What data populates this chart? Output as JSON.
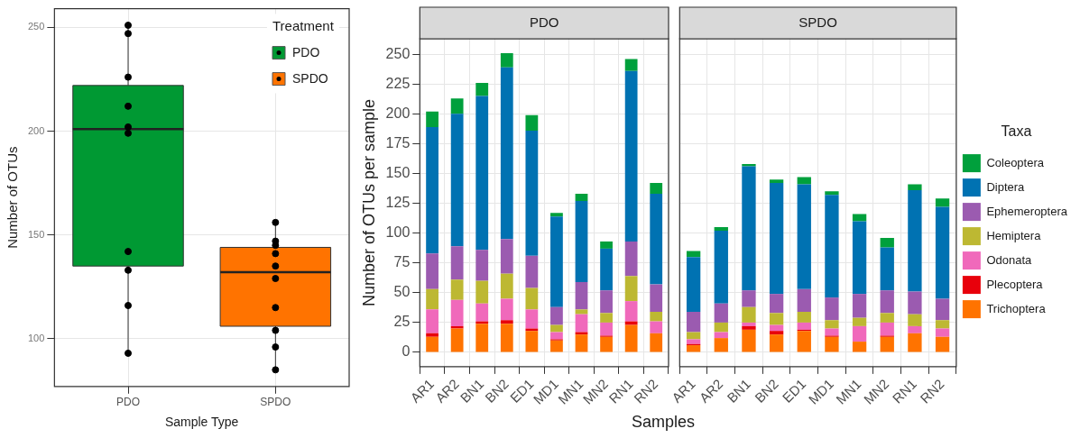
{
  "chart_data": [
    {
      "type": "box",
      "categories": [
        "PDO",
        "SPDO"
      ],
      "xlabel": "Sample Type",
      "ylabel": "Number of OTUs",
      "legend_title": "Treatment",
      "legend": "top right",
      "grid": true,
      "marker": "circle",
      "ylim": [
        77,
        259
      ],
      "yticks": [
        100,
        150,
        200,
        250
      ],
      "series": [
        {
          "name": "PDO",
          "color": "#009933",
          "boxes": [
            {
              "low": 93,
              "q1": 135,
              "median": 201,
              "q3": 222,
              "high": 251
            },
            null
          ]
        },
        {
          "name": "SPDO",
          "color": "#ff7300",
          "boxes": [
            null,
            {
              "low": 85,
              "q1": 106,
              "median": 132,
              "q3": 144,
              "high": 156
            }
          ]
        },
        {
          "type": "scatter",
          "color": "#000000",
          "x": [
            "PDO",
            "PDO",
            "PDO",
            "PDO",
            "PDO",
            "PDO",
            "PDO",
            "PDO",
            "PDO",
            "PDO",
            "SPDO",
            "SPDO",
            "SPDO",
            "SPDO",
            "SPDO",
            "SPDO",
            "SPDO",
            "SPDO",
            "SPDO",
            "SPDO"
          ],
          "values": [
            251,
            247,
            226,
            212,
            202,
            199,
            142,
            133,
            116,
            93,
            156,
            147,
            145,
            141,
            135,
            129,
            115,
            104,
            96,
            85
          ]
        }
      ]
    },
    {
      "type": "bar",
      "title": "PDO",
      "stacked": true,
      "grid": true,
      "xlabel": "Samples",
      "ylabel": "Number of OTUs per sample",
      "ylim": [
        -12,
        263
      ],
      "yticks": [
        0,
        25,
        50,
        75,
        100,
        125,
        150,
        175,
        200,
        225,
        250
      ],
      "categories": [
        "AR1",
        "AR2",
        "BN1",
        "BN2",
        "ED1",
        "MD1",
        "MN1",
        "MN2",
        "RN1",
        "RN2"
      ],
      "series": [
        {
          "color": "#ff7300",
          "values": [
            13,
            20,
            24,
            24,
            18,
            10,
            15,
            13,
            23,
            16
          ]
        },
        {
          "color": "#e8000b",
          "values": [
            3,
            2,
            2,
            3,
            2,
            1,
            2,
            1,
            3,
            0
          ]
        },
        {
          "color": "#f069bb",
          "values": [
            20,
            22,
            15,
            18,
            16,
            6,
            15,
            11,
            17,
            10
          ]
        },
        {
          "color": "#bdb832",
          "values": [
            17,
            17,
            19,
            21,
            18,
            6,
            4,
            8,
            21,
            8
          ]
        },
        {
          "color": "#9b5bb0",
          "values": [
            30,
            28,
            26,
            29,
            27,
            15,
            23,
            19,
            29,
            23
          ]
        },
        {
          "color": "#0072b2",
          "values": [
            106,
            111,
            129,
            144,
            105,
            76,
            68,
            35,
            143,
            76
          ]
        },
        {
          "color": "#00a03c",
          "values": [
            13,
            13,
            11,
            12,
            13,
            3,
            6,
            6,
            10,
            9
          ]
        }
      ]
    },
    {
      "type": "bar",
      "title": "SPDO",
      "stacked": true,
      "grid": true,
      "tick_labels": "x",
      "legend": "right",
      "legend_title": "Taxa",
      "ylim": [
        -12,
        263
      ],
      "yticks": [
        0,
        25,
        50,
        75,
        100,
        125,
        150,
        175,
        200,
        225,
        250
      ],
      "categories": [
        "AR1",
        "AR2",
        "BN1",
        "BN2",
        "ED1",
        "MD1",
        "MN1",
        "MN2",
        "RN1",
        "RN2"
      ],
      "series": [
        {
          "name": "Trichoptera",
          "color": "#ff7300",
          "values": [
            6,
            12,
            19,
            15,
            18,
            13,
            9,
            13,
            16,
            13
          ]
        },
        {
          "name": "Plecoptera",
          "color": "#e8000b",
          "values": [
            1,
            0,
            3,
            3,
            1,
            1,
            0,
            1,
            0,
            0
          ]
        },
        {
          "name": "Odonata",
          "color": "#f069bb",
          "values": [
            4,
            5,
            3,
            5,
            6,
            6,
            13,
            11,
            6,
            7
          ]
        },
        {
          "name": "Hemiptera",
          "color": "#bdb832",
          "values": [
            6,
            8,
            13,
            10,
            9,
            7,
            7,
            8,
            10,
            7
          ]
        },
        {
          "name": "Ephemeroptera",
          "color": "#9b5bb0",
          "values": [
            17,
            16,
            14,
            16,
            19,
            19,
            20,
            19,
            19,
            18
          ]
        },
        {
          "name": "Diptera",
          "color": "#0072b2",
          "values": [
            46,
            61,
            104,
            93,
            88,
            86,
            61,
            36,
            85,
            77
          ]
        },
        {
          "name": "Coleoptera",
          "color": "#00a03c",
          "values": [
            5,
            3,
            2,
            3,
            6,
            3,
            6,
            8,
            5,
            7
          ]
        }
      ]
    }
  ]
}
